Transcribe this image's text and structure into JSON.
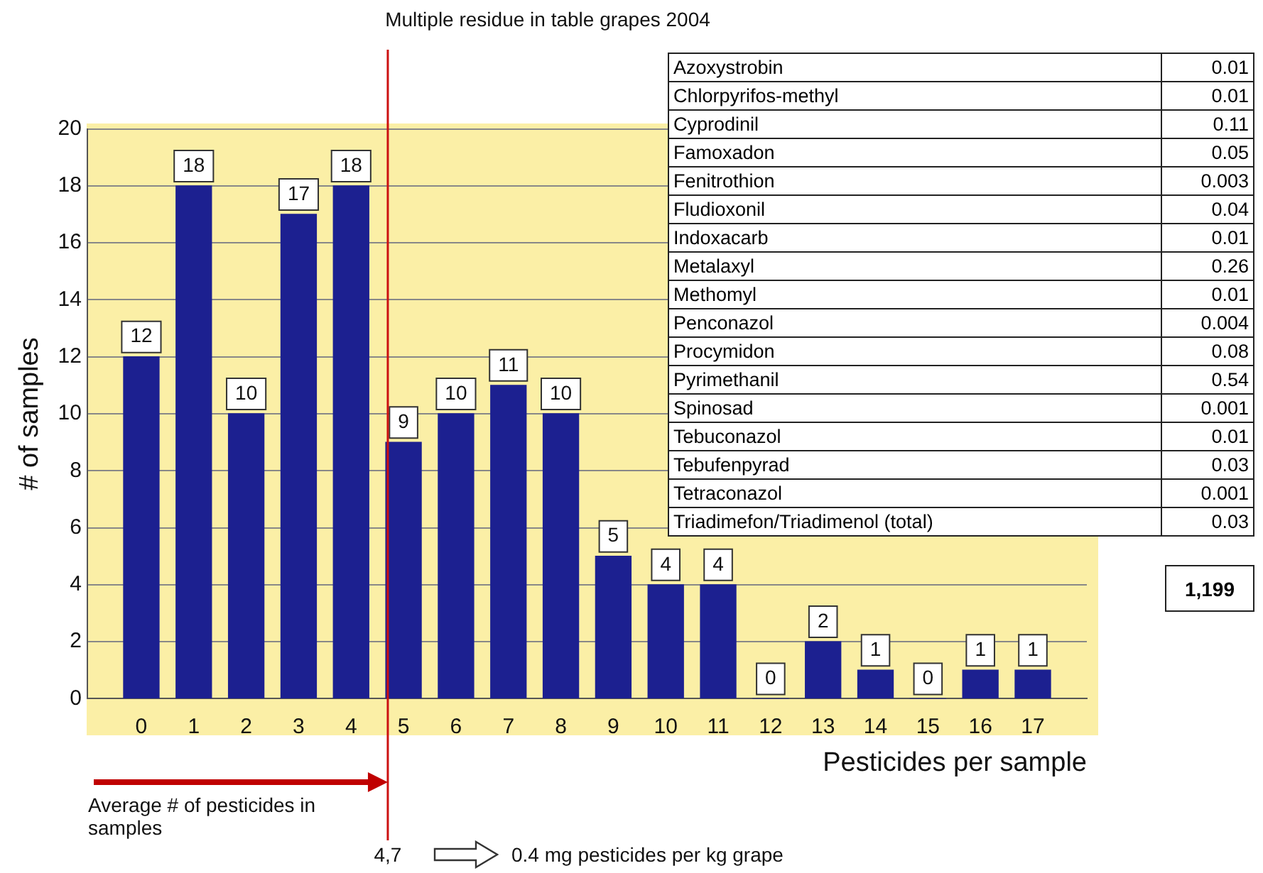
{
  "chart_data": {
    "type": "bar",
    "title": "Multiple residue in table grapes 2004",
    "xlabel": "Pesticides per sample",
    "ylabel": "# of samples",
    "x": [
      0,
      1,
      2,
      3,
      4,
      5,
      6,
      7,
      8,
      9,
      10,
      11,
      12,
      13,
      14,
      15,
      16,
      17
    ],
    "xlim": [
      -0.5,
      17.5
    ],
    "xticks": [
      0,
      1,
      2,
      3,
      4,
      5,
      6,
      7,
      8,
      9,
      10,
      11,
      12,
      13,
      14,
      15,
      16,
      17
    ],
    "values": [
      12,
      18,
      10,
      17,
      18,
      9,
      10,
      11,
      10,
      5,
      4,
      4,
      0,
      2,
      1,
      0,
      1,
      1
    ],
    "color": "#1c2090",
    "ylim": [
      0,
      20
    ],
    "yticks": [
      0,
      2,
      4,
      6,
      8,
      10,
      12,
      14,
      16,
      18,
      20
    ],
    "grid": "y",
    "legend": false,
    "data_labels": true,
    "ref_lines": [
      {
        "axis": "x",
        "value": 4.7,
        "label": "4,7",
        "color": "#cc1111"
      }
    ],
    "annotations": [
      "Average # of pesticides in samples",
      "0.4 mg pesticides per kg grape",
      "1,199",
      "Azoxystrobin",
      "0.01",
      "Chlorpyrifos-methyl",
      "0.01",
      "Cyprodinil",
      "0.11",
      "Famoxadon",
      "0.05",
      "Fenitrothion",
      "0.003",
      "Fludioxonil",
      "0.04",
      "Indoxacarb",
      "0.01",
      "Metalaxyl",
      "0.26",
      "Methomyl",
      "0.01",
      "Penconazol",
      "0.004",
      "Procymidon",
      "0.08",
      "Pyrimethanil",
      "0.54",
      "Spinosad",
      "0.001",
      "Tebuconazol",
      "0.01",
      "Tebufenpyrad",
      "0.03",
      "Tetraconazol",
      "0.001",
      "Triadimefon/Triadimenol (total)",
      "0.03"
    ]
  }
}
